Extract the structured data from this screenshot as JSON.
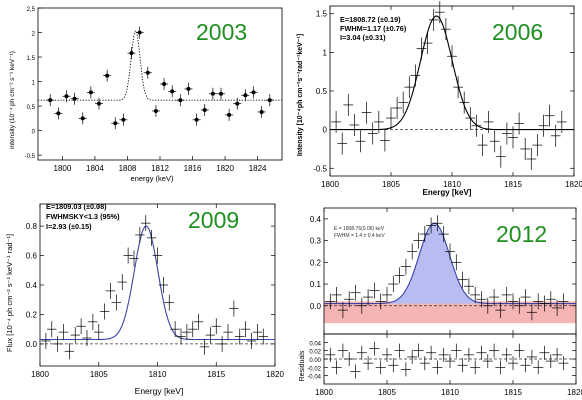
{
  "chart_data": [
    {
      "type": "scatter",
      "year_label": "2003",
      "xlabel": "energy (keV)",
      "ylabel": "intensity (10⁻⁴ ph cm⁻² s⁻¹ keV⁻¹)",
      "xlim": [
        1797,
        1827
      ],
      "ylim": [
        -0.6,
        2.5
      ],
      "xticks": [
        "1800",
        "1804",
        "1808",
        "1812",
        "1816",
        "1820",
        "1824"
      ],
      "yticks": [
        "-0,5",
        "0",
        "0,5",
        "1",
        "1,5",
        "2",
        "2,5"
      ],
      "curve": {
        "baseline": 0.62,
        "amplitude": 1.42,
        "center": 1809,
        "sigma": 0.55,
        "style": "dotted"
      },
      "points": [
        {
          "x": 1798.5,
          "y": 0.62
        },
        {
          "x": 1799.5,
          "y": 0.35
        },
        {
          "x": 1800.5,
          "y": 0.7
        },
        {
          "x": 1801.5,
          "y": 0.65
        },
        {
          "x": 1802.5,
          "y": 0.25
        },
        {
          "x": 1803.5,
          "y": 0.78
        },
        {
          "x": 1804.5,
          "y": 0.55
        },
        {
          "x": 1805.5,
          "y": 1.12
        },
        {
          "x": 1806.5,
          "y": 0.15
        },
        {
          "x": 1807.5,
          "y": 0.22
        },
        {
          "x": 1808.5,
          "y": 1.58
        },
        {
          "x": 1809.5,
          "y": 2.0
        },
        {
          "x": 1810.5,
          "y": 1.18
        },
        {
          "x": 1811.5,
          "y": 0.4
        },
        {
          "x": 1812.5,
          "y": 0.95
        },
        {
          "x": 1813.5,
          "y": 0.8
        },
        {
          "x": 1814.5,
          "y": 0.62
        },
        {
          "x": 1815.5,
          "y": 0.85
        },
        {
          "x": 1816.5,
          "y": 0.22
        },
        {
          "x": 1817.5,
          "y": 0.42
        },
        {
          "x": 1818.5,
          "y": 0.75
        },
        {
          "x": 1819.5,
          "y": 0.75
        },
        {
          "x": 1820.5,
          "y": 0.32
        },
        {
          "x": 1821.5,
          "y": 0.55
        },
        {
          "x": 1822.5,
          "y": 0.72
        },
        {
          "x": 1823.5,
          "y": 0.78
        },
        {
          "x": 1824.5,
          "y": 0.38
        },
        {
          "x": 1825.5,
          "y": 0.62
        }
      ]
    },
    {
      "type": "line",
      "year_label": "2006",
      "xlabel": "Energy [keV]",
      "ylabel": "Intensity [10⁻⁴ph cm⁻²s⁻¹rad⁻¹keV⁻¹]",
      "xlim": [
        1800,
        1820
      ],
      "ylim": [
        -0.6,
        1.6
      ],
      "xticks": [
        "1800",
        "1805",
        "1810",
        "1815",
        "1820"
      ],
      "yticks": [
        "-0.5",
        "0",
        "0.5",
        "1",
        "1.5"
      ],
      "annotation": {
        "line1": "E=1808.72 (±0.19)",
        "line2": "FWHM=1.17 (±0.76)",
        "line3": "I=3.04 (±0.31)"
      },
      "curve": {
        "baseline": 0,
        "amplitude": 1.47,
        "center": 1808.72,
        "sigma": 1.3
      },
      "points": [
        {
          "x": 1800.5,
          "y": 0.1
        },
        {
          "x": 1801.0,
          "y": -0.18
        },
        {
          "x": 1801.5,
          "y": 0.32
        },
        {
          "x": 1802.0,
          "y": 0.06
        },
        {
          "x": 1802.5,
          "y": -0.15
        },
        {
          "x": 1803.0,
          "y": 0.22
        },
        {
          "x": 1803.5,
          "y": -0.05
        },
        {
          "x": 1804.0,
          "y": 0.1
        },
        {
          "x": 1804.5,
          "y": -0.14
        },
        {
          "x": 1805.0,
          "y": 0.15
        },
        {
          "x": 1805.5,
          "y": 0.28
        },
        {
          "x": 1806.0,
          "y": 0.35
        },
        {
          "x": 1806.5,
          "y": 0.55
        },
        {
          "x": 1807.0,
          "y": 0.7
        },
        {
          "x": 1807.5,
          "y": 1.05
        },
        {
          "x": 1808.0,
          "y": 1.12
        },
        {
          "x": 1808.5,
          "y": 1.42
        },
        {
          "x": 1809.0,
          "y": 1.52
        },
        {
          "x": 1809.5,
          "y": 1.3
        },
        {
          "x": 1810.0,
          "y": 0.95
        },
        {
          "x": 1810.5,
          "y": 0.55
        },
        {
          "x": 1811.0,
          "y": 0.35
        },
        {
          "x": 1811.5,
          "y": 0.15
        },
        {
          "x": 1812.0,
          "y": 0.05
        },
        {
          "x": 1812.5,
          "y": -0.2
        },
        {
          "x": 1813.0,
          "y": 0.1
        },
        {
          "x": 1813.5,
          "y": -0.15
        },
        {
          "x": 1814.0,
          "y": -0.35
        },
        {
          "x": 1814.5,
          "y": -0.05
        },
        {
          "x": 1815.0,
          "y": -0.1
        },
        {
          "x": 1815.5,
          "y": 0.08
        },
        {
          "x": 1816.0,
          "y": -0.25
        },
        {
          "x": 1816.5,
          "y": -0.38
        },
        {
          "x": 1817.0,
          "y": -0.2
        },
        {
          "x": 1817.5,
          "y": 0.05
        },
        {
          "x": 1818.0,
          "y": 0.18
        },
        {
          "x": 1818.5,
          "y": -0.08
        },
        {
          "x": 1819.0,
          "y": 0.1
        }
      ]
    },
    {
      "type": "line",
      "year_label": "2009",
      "xlabel": "Energy [keV]",
      "ylabel": "Flux [10⁻⁴ ph cm⁻² s⁻¹ keV⁻¹ rad⁻¹]",
      "xlim": [
        1800,
        1820
      ],
      "ylim": [
        -0.15,
        0.95
      ],
      "xticks": [
        "1800",
        "1805",
        "1810",
        "1815",
        "1820"
      ],
      "yticks": [
        "0.0",
        "0.2",
        "0.4",
        "0.6",
        "0.8"
      ],
      "annotation": {
        "line1": "E=1809.03 (±0.08)",
        "line2": "FWHMSKY<1.3 (95%)",
        "line3": "I=2.93 (±0.15)"
      },
      "curve": {
        "baseline": 0.03,
        "amplitude": 0.77,
        "center": 1809.03,
        "sigma": 1.0,
        "color": "#3a46a8"
      },
      "points": [
        {
          "x": 1800.5,
          "y": 0.02
        },
        {
          "x": 1801.0,
          "y": 0.1
        },
        {
          "x": 1801.5,
          "y": 0.0
        },
        {
          "x": 1802.0,
          "y": 0.08
        },
        {
          "x": 1802.5,
          "y": -0.05
        },
        {
          "x": 1803.0,
          "y": 0.06
        },
        {
          "x": 1803.5,
          "y": 0.12
        },
        {
          "x": 1804.0,
          "y": 0.04
        },
        {
          "x": 1804.5,
          "y": 0.15
        },
        {
          "x": 1805.0,
          "y": 0.08
        },
        {
          "x": 1805.5,
          "y": 0.22
        },
        {
          "x": 1806.0,
          "y": 0.36
        },
        {
          "x": 1806.5,
          "y": 0.28
        },
        {
          "x": 1807.0,
          "y": 0.42
        },
        {
          "x": 1807.5,
          "y": 0.6
        },
        {
          "x": 1808.0,
          "y": 0.58
        },
        {
          "x": 1808.5,
          "y": 0.74
        },
        {
          "x": 1809.0,
          "y": 0.82
        },
        {
          "x": 1809.5,
          "y": 0.72
        },
        {
          "x": 1810.0,
          "y": 0.6
        },
        {
          "x": 1810.5,
          "y": 0.4
        },
        {
          "x": 1811.0,
          "y": 0.28
        },
        {
          "x": 1811.5,
          "y": 0.1
        },
        {
          "x": 1812.0,
          "y": 0.05
        },
        {
          "x": 1812.5,
          "y": 0.08
        },
        {
          "x": 1813.0,
          "y": 0.1
        },
        {
          "x": 1813.5,
          "y": 0.15
        },
        {
          "x": 1814.0,
          "y": -0.02
        },
        {
          "x": 1814.5,
          "y": 0.06
        },
        {
          "x": 1815.0,
          "y": 0.12
        },
        {
          "x": 1815.5,
          "y": 0.0
        },
        {
          "x": 1816.0,
          "y": 0.08
        },
        {
          "x": 1816.5,
          "y": 0.24
        },
        {
          "x": 1817.0,
          "y": 0.05
        },
        {
          "x": 1817.5,
          "y": 0.1
        },
        {
          "x": 1818.0,
          "y": 0.02
        },
        {
          "x": 1818.5,
          "y": 0.08
        },
        {
          "x": 1819.0,
          "y": 0.05
        }
      ]
    },
    {
      "type": "line",
      "year_label": "2012",
      "xlabel": "",
      "ylabel": "",
      "xlim": [
        1800,
        1820
      ],
      "ylim": [
        -0.13,
        0.45
      ],
      "xticks": [
        "1800",
        "1805",
        "1810",
        "1815",
        "1820"
      ],
      "yticks": [
        "0.0",
        "0.1",
        "0.2",
        "0.3",
        "0.4"
      ],
      "annotation": {
        "line1": "E = 1808.76(0.06) keV",
        "line2": "FWHM = 1.4 ± 0.4 keV"
      },
      "curve": {
        "baseline": 0.01,
        "amplitude": 0.37,
        "center": 1808.76,
        "sigma": 1.2,
        "fill": "#b7bdf0",
        "color": "#3a46a8"
      },
      "band": {
        "y0": -0.08,
        "y1": 0.02,
        "color": "#f5b5b5"
      },
      "points": [
        {
          "x": 1800.5,
          "y": 0.02
        },
        {
          "x": 1801.0,
          "y": 0.05
        },
        {
          "x": 1801.5,
          "y": -0.02
        },
        {
          "x": 1802.0,
          "y": 0.03
        },
        {
          "x": 1802.5,
          "y": 0.06
        },
        {
          "x": 1803.0,
          "y": 0.0
        },
        {
          "x": 1803.5,
          "y": 0.04
        },
        {
          "x": 1804.0,
          "y": 0.07
        },
        {
          "x": 1804.5,
          "y": 0.02
        },
        {
          "x": 1805.0,
          "y": 0.05
        },
        {
          "x": 1805.5,
          "y": 0.1
        },
        {
          "x": 1806.0,
          "y": 0.14
        },
        {
          "x": 1806.5,
          "y": 0.18
        },
        {
          "x": 1807.0,
          "y": 0.25
        },
        {
          "x": 1807.5,
          "y": 0.3
        },
        {
          "x": 1808.0,
          "y": 0.33
        },
        {
          "x": 1808.5,
          "y": 0.37
        },
        {
          "x": 1809.0,
          "y": 0.38
        },
        {
          "x": 1809.5,
          "y": 0.33
        },
        {
          "x": 1810.0,
          "y": 0.25
        },
        {
          "x": 1810.5,
          "y": 0.2
        },
        {
          "x": 1811.0,
          "y": 0.12
        },
        {
          "x": 1811.5,
          "y": 0.09
        },
        {
          "x": 1812.0,
          "y": 0.05
        },
        {
          "x": 1812.5,
          "y": 0.03
        },
        {
          "x": 1813.0,
          "y": 0.0
        },
        {
          "x": 1813.5,
          "y": 0.04
        },
        {
          "x": 1814.0,
          "y": -0.02
        },
        {
          "x": 1814.5,
          "y": 0.05
        },
        {
          "x": 1815.0,
          "y": 0.02
        },
        {
          "x": 1815.5,
          "y": 0.0
        },
        {
          "x": 1816.0,
          "y": 0.04
        },
        {
          "x": 1816.5,
          "y": -0.03
        },
        {
          "x": 1817.0,
          "y": 0.02
        },
        {
          "x": 1817.5,
          "y": 0.01
        },
        {
          "x": 1818.0,
          "y": 0.03
        },
        {
          "x": 1818.5,
          "y": -0.01
        },
        {
          "x": 1819.0,
          "y": 0.02
        }
      ]
    },
    {
      "type": "scatter",
      "panel": "residuals",
      "ylabel": "Residuals",
      "xlim": [
        1800,
        1820
      ],
      "ylim": [
        -0.06,
        0.06
      ],
      "xticks": [
        "1800",
        "1805",
        "1810",
        "1815",
        "1820"
      ],
      "yticks": [
        "-0.04",
        "-0.02",
        "0.00",
        "0.02",
        "0.04"
      ],
      "points": [
        {
          "x": 1800.5,
          "y": 0.01
        },
        {
          "x": 1801.0,
          "y": -0.02
        },
        {
          "x": 1801.5,
          "y": 0.02
        },
        {
          "x": 1802.0,
          "y": 0.0
        },
        {
          "x": 1802.5,
          "y": -0.03
        },
        {
          "x": 1803.0,
          "y": 0.015
        },
        {
          "x": 1803.5,
          "y": -0.01
        },
        {
          "x": 1804.0,
          "y": 0.025
        },
        {
          "x": 1804.5,
          "y": -0.02
        },
        {
          "x": 1805.0,
          "y": 0.01
        },
        {
          "x": 1805.5,
          "y": -0.015
        },
        {
          "x": 1806.0,
          "y": 0.02
        },
        {
          "x": 1806.5,
          "y": -0.025
        },
        {
          "x": 1807.0,
          "y": 0.005
        },
        {
          "x": 1807.5,
          "y": 0.02
        },
        {
          "x": 1808.0,
          "y": -0.01
        },
        {
          "x": 1808.5,
          "y": 0.015
        },
        {
          "x": 1809.0,
          "y": -0.02
        },
        {
          "x": 1809.5,
          "y": 0.01
        },
        {
          "x": 1810.0,
          "y": -0.005
        },
        {
          "x": 1810.5,
          "y": 0.02
        },
        {
          "x": 1811.0,
          "y": -0.015
        },
        {
          "x": 1811.5,
          "y": 0.01
        },
        {
          "x": 1812.0,
          "y": -0.02
        },
        {
          "x": 1812.5,
          "y": 0.015
        },
        {
          "x": 1813.0,
          "y": -0.005
        },
        {
          "x": 1813.5,
          "y": 0.02
        },
        {
          "x": 1814.0,
          "y": -0.02
        },
        {
          "x": 1814.5,
          "y": 0.01
        },
        {
          "x": 1815.0,
          "y": -0.01
        },
        {
          "x": 1815.5,
          "y": 0.02
        },
        {
          "x": 1816.0,
          "y": -0.015
        },
        {
          "x": 1816.5,
          "y": 0.005
        },
        {
          "x": 1817.0,
          "y": -0.02
        },
        {
          "x": 1817.5,
          "y": 0.015
        },
        {
          "x": 1818.0,
          "y": -0.005
        },
        {
          "x": 1818.5,
          "y": 0.01
        },
        {
          "x": 1819.0,
          "y": -0.01
        }
      ]
    }
  ]
}
